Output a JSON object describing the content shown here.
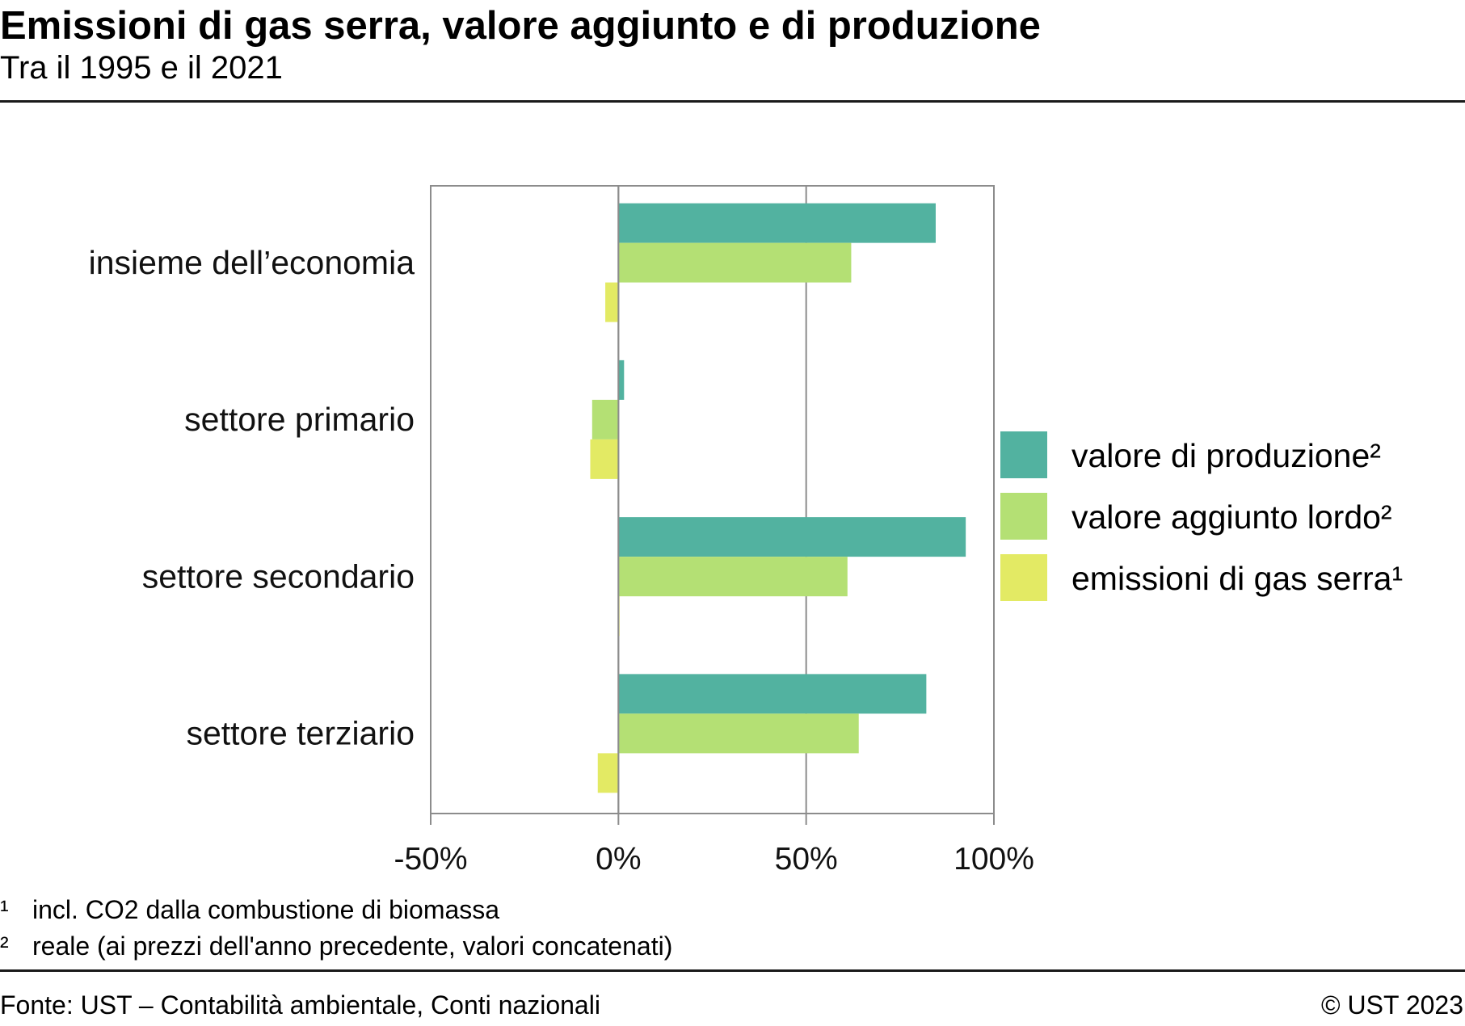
{
  "header": {
    "title": "Emissioni di gas serra, valore aggiunto e di produzione",
    "subtitle": "Tra il 1995 e il 2021"
  },
  "chart_data": {
    "type": "bar",
    "orientation": "horizontal",
    "categories": [
      "insieme dell’economia",
      "settore primario",
      "settore secondario",
      "settore terziario"
    ],
    "series": [
      {
        "name": "valore di produzione²",
        "color": "#52b2a0",
        "values": [
          84.5,
          1.5,
          92.5,
          82
        ]
      },
      {
        "name": "valore aggiunto lordo²",
        "color": "#b4e074",
        "values": [
          62,
          -7,
          61,
          64
        ]
      },
      {
        "name": "emissioni di gas serra¹",
        "color": "#e3ea64",
        "values": [
          -3.5,
          -7.5,
          0.3,
          -5.5
        ]
      }
    ],
    "xlim": [
      -50,
      100
    ],
    "xticks": [
      -50,
      0,
      50,
      100
    ],
    "xtick_labels": [
      "-50%",
      "0%",
      "50%",
      "100%"
    ],
    "grid": true,
    "legend_placement": "right"
  },
  "footnotes": [
    {
      "mark": "¹",
      "text": "incl. CO2 dalla combustione di biomassa"
    },
    {
      "mark": "²",
      "text": "reale (ai prezzi dell'anno precedente, valori concatenati)"
    }
  ],
  "footer": {
    "source": "Fonte: UST – Contabilità ambientale, Conti nazionali",
    "copyright": "© UST 2023"
  }
}
